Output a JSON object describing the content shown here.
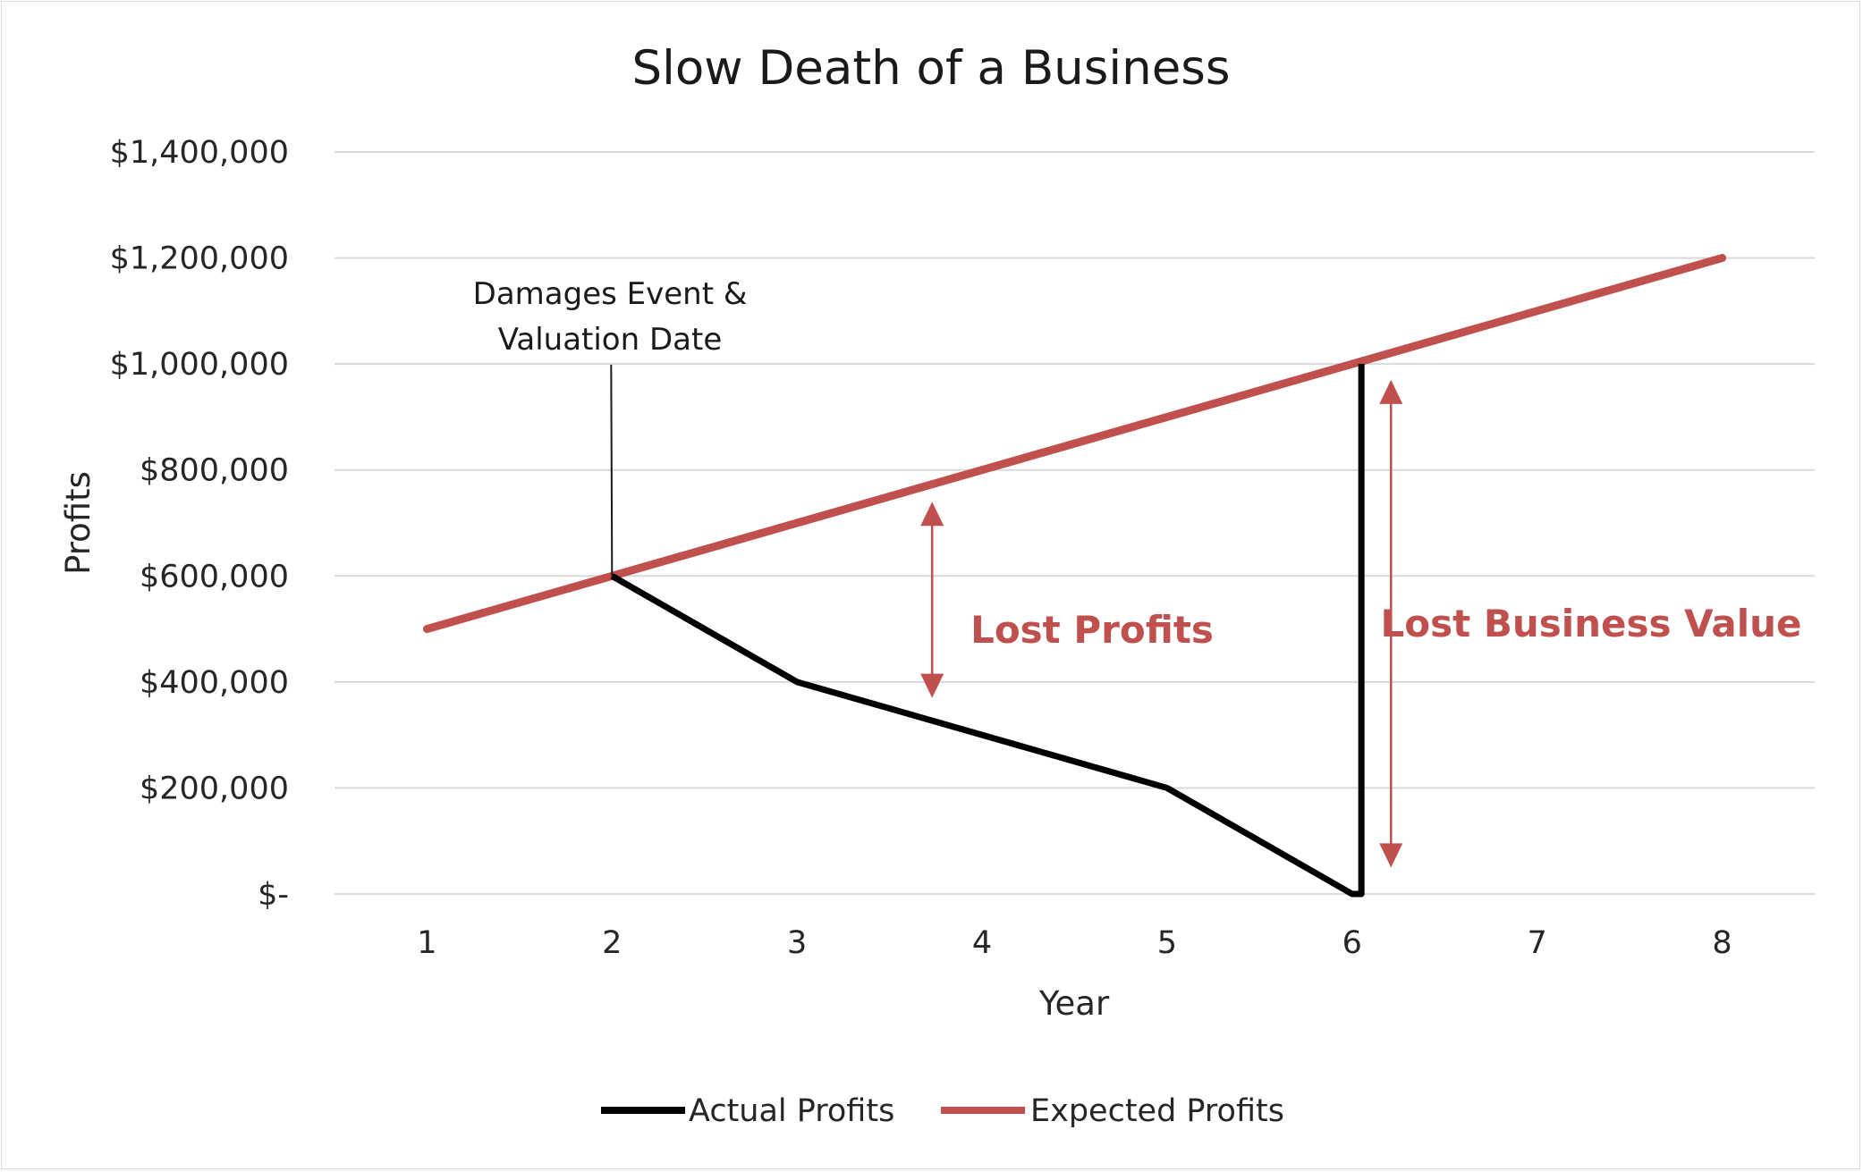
{
  "chart_data": {
    "type": "line",
    "title": "Slow Death of a Business",
    "xlabel": "Year",
    "ylabel": "Profits",
    "x": [
      1,
      2,
      3,
      4,
      5,
      6,
      7,
      8
    ],
    "xlim": [
      0.5,
      8.5
    ],
    "ylim": [
      0,
      1400000
    ],
    "yticks": [
      0,
      200000,
      400000,
      600000,
      800000,
      1000000,
      1200000,
      1400000
    ],
    "ytick_labels": [
      "$-",
      "$200,000",
      "$400,000",
      "$600,000",
      "$800,000",
      "$1,000,000",
      "$1,200,000",
      "$1,400,000"
    ],
    "xtick_labels": [
      "1",
      "2",
      "3",
      "4",
      "5",
      "6",
      "7",
      "8"
    ],
    "grid": true,
    "legend_position": "bottom",
    "series": [
      {
        "name": "Actual Profits",
        "color": "#000000",
        "points": [
          [
            2,
            600000
          ],
          [
            3,
            400000
          ],
          [
            4,
            300000
          ],
          [
            5,
            200000
          ],
          [
            6,
            0
          ],
          [
            6.05,
            0
          ],
          [
            6.05,
            1000000
          ]
        ]
      },
      {
        "name": "Expected Profits",
        "color": "#c0504d",
        "points": [
          [
            1,
            500000
          ],
          [
            2,
            600000
          ],
          [
            3,
            700000
          ],
          [
            4,
            800000
          ],
          [
            5,
            900000
          ],
          [
            6,
            1000000
          ],
          [
            7,
            1100000
          ],
          [
            8,
            1200000
          ]
        ]
      }
    ],
    "annotations": {
      "event_line1": "Damages Event &",
      "event_line2": "Valuation Date",
      "event_x": 2,
      "lost_profits": "Lost Profits",
      "lost_profits_arrow": {
        "x": 3.73,
        "y_top": 740000,
        "y_bottom": 370000
      },
      "lost_business_value": "Lost Business Value",
      "lost_value_arrow": {
        "x": 6.21,
        "y_top": 970000,
        "y_bottom": 50000
      },
      "accent_color": "#c0504d"
    }
  }
}
